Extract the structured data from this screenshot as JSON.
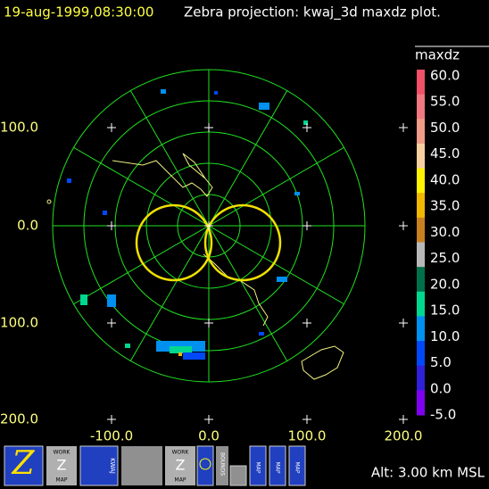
{
  "header": {
    "timestamp": "19-aug-1999,08:30:00",
    "title": "Zebra projection: kwaj_3d maxdz plot."
  },
  "colorbar": {
    "title": "maxdz",
    "labels": [
      "60.0",
      "55.0",
      "50.0",
      "45.0",
      "40.0",
      "35.0",
      "30.0",
      "25.0",
      "20.0",
      "15.0",
      "10.0",
      "5.0",
      "0.0",
      "-5.0"
    ],
    "colors": [
      "#f05068",
      "#f07880",
      "#f09c88",
      "#f8d0a0",
      "#fff000",
      "#f0b800",
      "#c88020",
      "#b8b8b8",
      "#00704a",
      "#00d890",
      "#0090f0",
      "#0048f8",
      "#3020d8",
      "#8000f0"
    ]
  },
  "axes": {
    "y_labels": [
      "100.0",
      "0.0",
      "100.0",
      "200.0"
    ],
    "x_labels": [
      "-100.0",
      "0.0",
      "100.0",
      "200.0"
    ]
  },
  "toolbar": {
    "work_1": [
      "WORK",
      "Z",
      "MAP"
    ],
    "kwaj": "KWAJ",
    "work_2": [
      "WORK",
      "Z",
      "MAP"
    ],
    "bounds": "BOUNDS",
    "map_1": "MAP",
    "map_2": "MAP",
    "map_3": "MAP"
  },
  "status": "Alt: 3.00 km MSL"
}
